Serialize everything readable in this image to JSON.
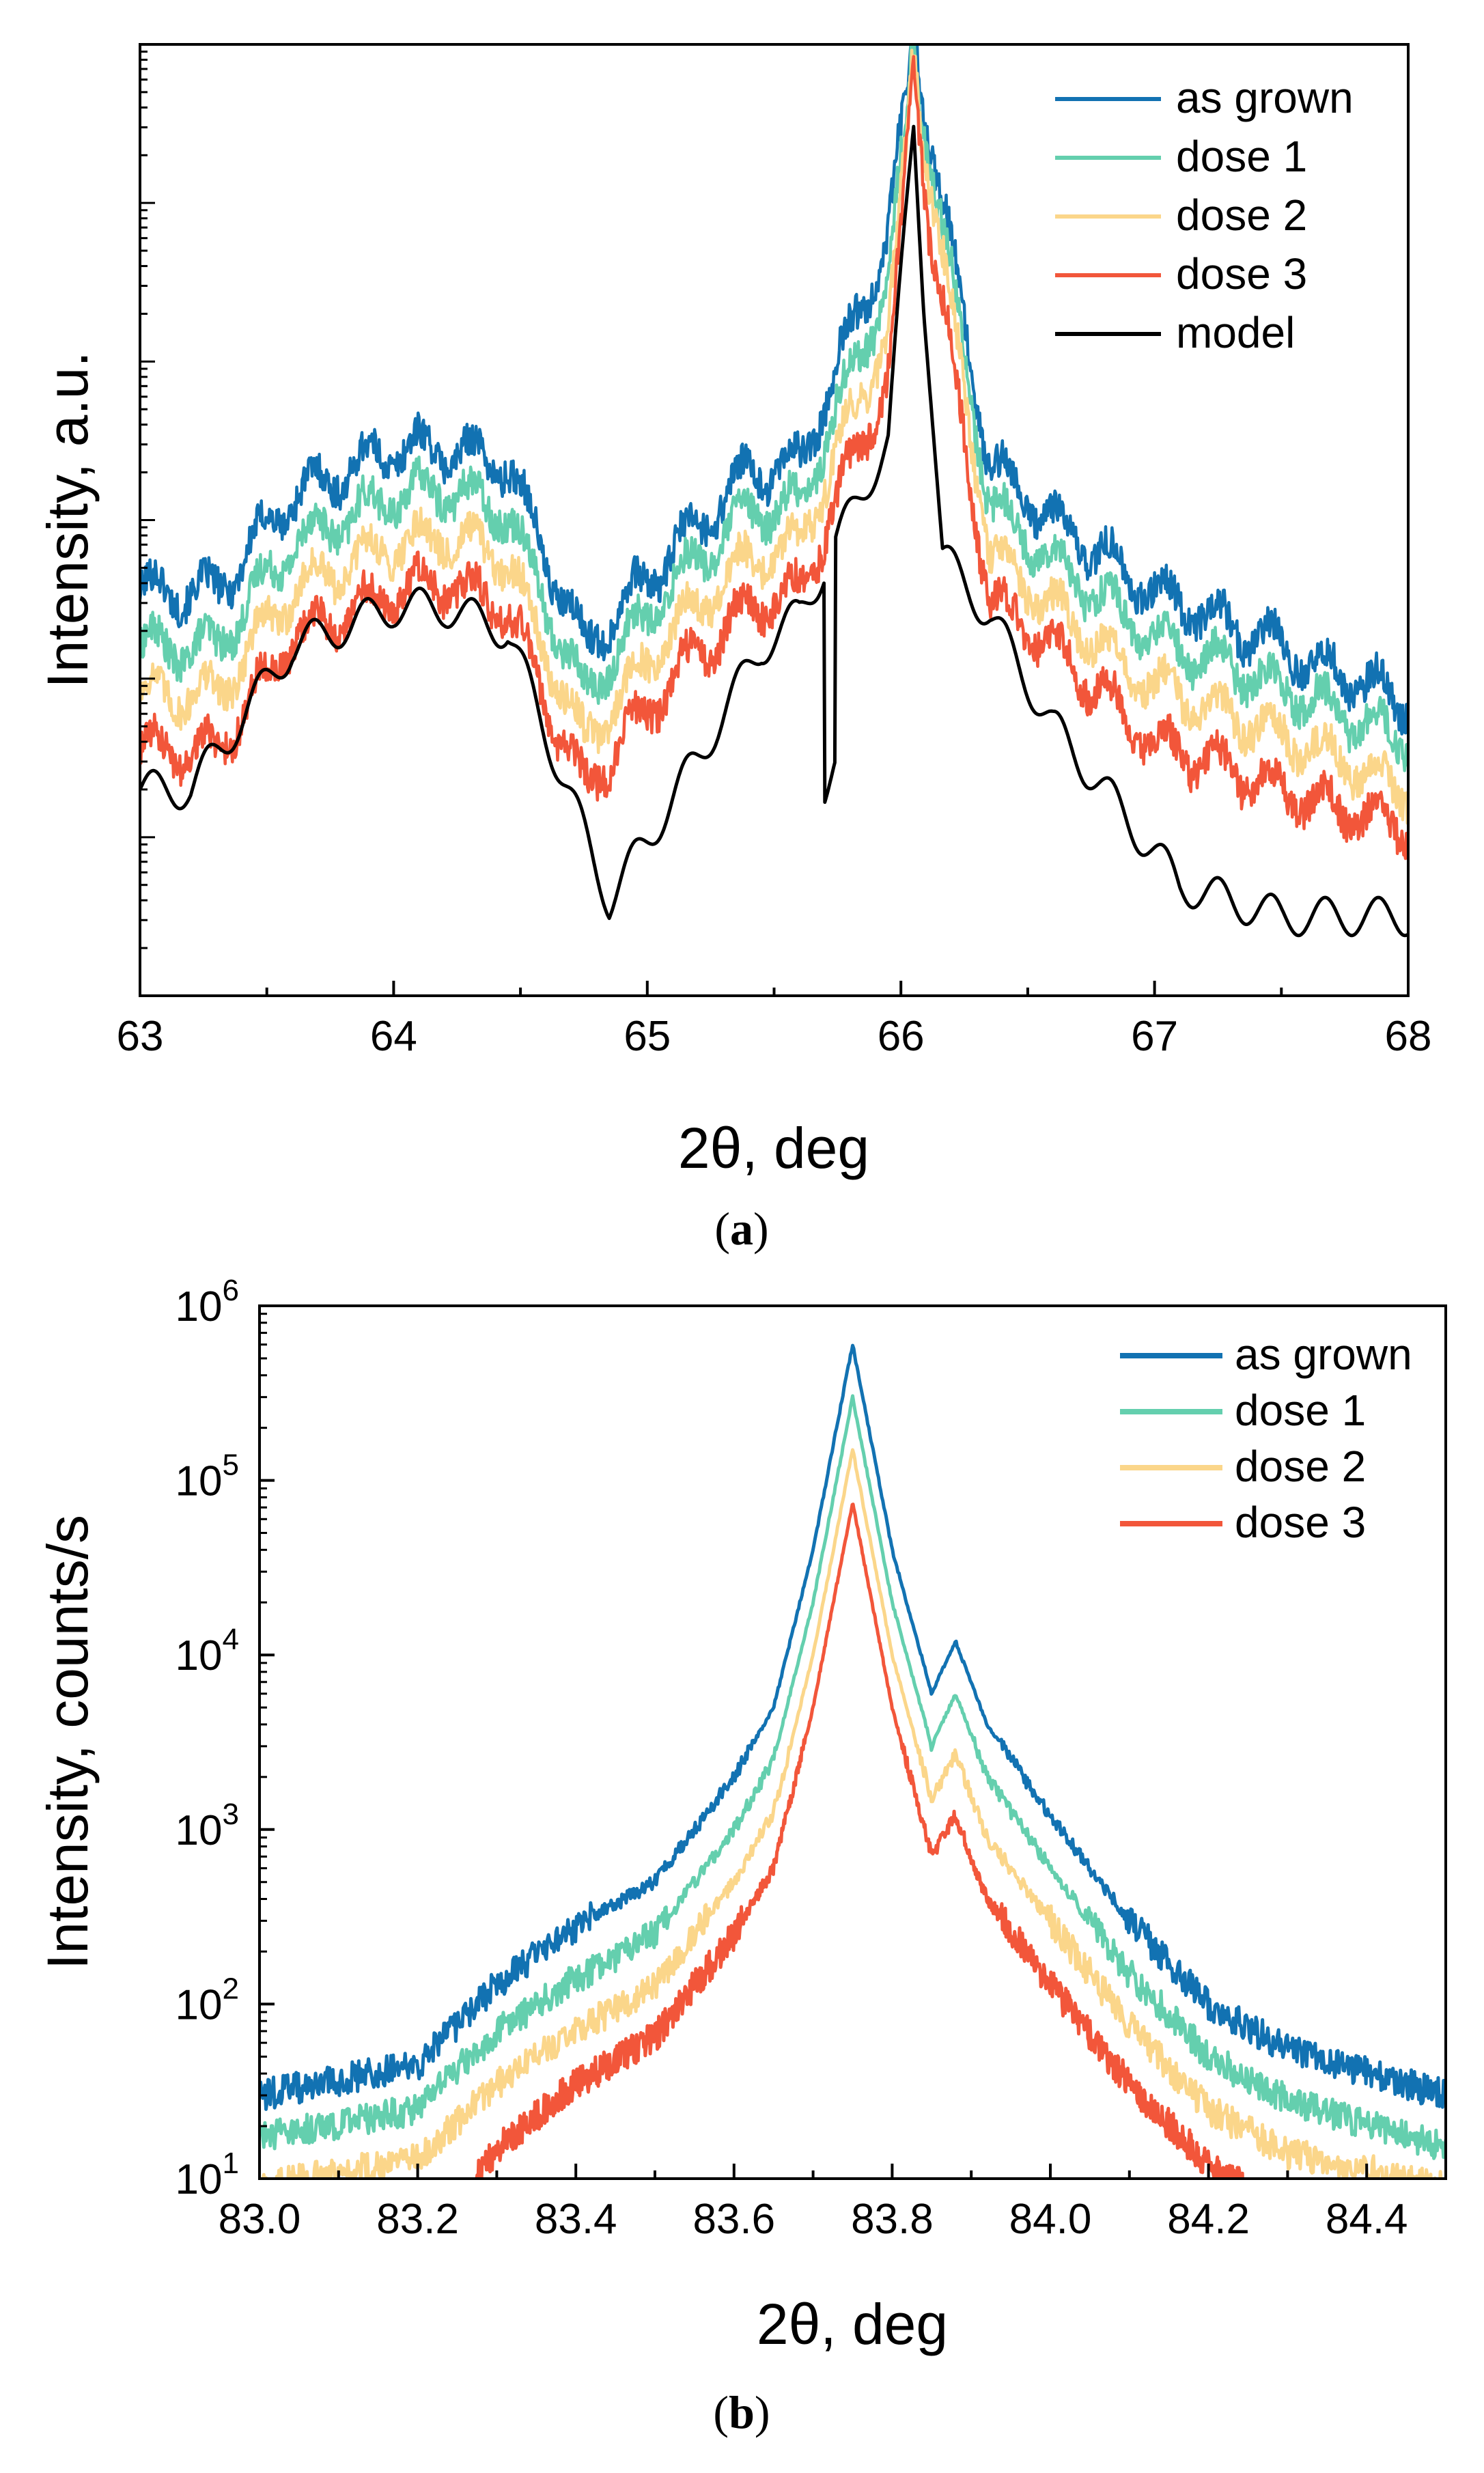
{
  "chart_data": [
    {
      "type": "line",
      "panel_label": "a",
      "xlabel": "2θ, deg",
      "ylabel": "Intensity, a.u.",
      "xlim": [
        63,
        68
      ],
      "xticks": [
        "63",
        "64",
        "65",
        "66",
        "67",
        "68"
      ],
      "yscale": "log",
      "ytick_labels_shown": false,
      "legend_position": "top-right",
      "series": [
        {
          "name": "as grown",
          "color": "#1272B2",
          "peaks": [
            [
              63.3,
              2.55
            ],
            [
              63.6,
              3.15
            ],
            [
              64.0,
              3.45
            ],
            [
              64.2,
              3.45
            ],
            [
              64.45,
              3.35
            ],
            [
              64.75,
              2.2
            ],
            [
              65.1,
              2.8
            ],
            [
              65.4,
              3.3
            ],
            [
              65.6,
              3.35
            ],
            [
              65.95,
              4.8
            ],
            [
              66.05,
              6.0
            ],
            [
              66.35,
              3.35
            ],
            [
              66.6,
              3.0
            ],
            [
              67.0,
              2.55
            ],
            [
              67.5,
              2.2
            ],
            [
              68.0,
              1.85
            ]
          ]
        },
        {
          "name": "dose 1",
          "color": "#64CFAE",
          "peaks": [
            [
              63.3,
              2.2
            ],
            [
              63.6,
              2.85
            ],
            [
              64.0,
              3.15
            ],
            [
              64.2,
              3.2
            ],
            [
              64.45,
              3.05
            ],
            [
              64.75,
              1.9
            ],
            [
              65.1,
              2.6
            ],
            [
              65.4,
              3.05
            ],
            [
              65.6,
              3.1
            ],
            [
              65.95,
              4.5
            ],
            [
              66.05,
              5.9
            ],
            [
              66.35,
              3.1
            ],
            [
              66.6,
              2.75
            ],
            [
              67.0,
              2.25
            ],
            [
              67.5,
              1.95
            ],
            [
              68.0,
              1.6
            ]
          ]
        },
        {
          "name": "dose 2",
          "color": "#FBD68A",
          "peaks": [
            [
              63.3,
              1.9
            ],
            [
              63.6,
              2.55
            ],
            [
              64.0,
              2.85
            ],
            [
              64.2,
              2.9
            ],
            [
              64.45,
              2.75
            ],
            [
              64.75,
              1.6
            ],
            [
              65.1,
              2.3
            ],
            [
              65.4,
              2.75
            ],
            [
              65.6,
              2.85
            ],
            [
              65.95,
              4.2
            ],
            [
              66.05,
              5.8
            ],
            [
              66.35,
              2.8
            ],
            [
              66.6,
              2.45
            ],
            [
              67.0,
              1.95
            ],
            [
              67.5,
              1.65
            ],
            [
              68.0,
              1.3
            ]
          ]
        },
        {
          "name": "dose 3",
          "color": "#F2563A",
          "peaks": [
            [
              63.3,
              1.55
            ],
            [
              63.6,
              2.25
            ],
            [
              64.0,
              2.55
            ],
            [
              64.2,
              2.6
            ],
            [
              64.45,
              2.45
            ],
            [
              64.75,
              1.3
            ],
            [
              65.1,
              2.0
            ],
            [
              65.4,
              2.45
            ],
            [
              65.6,
              2.55
            ],
            [
              65.95,
              3.9
            ],
            [
              66.05,
              5.5
            ],
            [
              66.35,
              2.5
            ],
            [
              66.6,
              2.2
            ],
            [
              67.0,
              1.6
            ],
            [
              67.5,
              1.3
            ],
            [
              68.0,
              1.05
            ]
          ]
        },
        {
          "name": "model",
          "color": "#000000",
          "peaks": [
            [
              63.2,
              1.3
            ],
            [
              63.6,
              2.2
            ],
            [
              64.0,
              2.45
            ],
            [
              64.2,
              2.45
            ],
            [
              64.45,
              2.3
            ],
            [
              64.85,
              0.6
            ],
            [
              65.2,
              1.5
            ],
            [
              65.45,
              2.2
            ],
            [
              65.6,
              2.4
            ],
            [
              65.95,
              3.5
            ],
            [
              66.05,
              5.5
            ],
            [
              66.15,
              2.8
            ],
            [
              66.35,
              2.4
            ],
            [
              66.6,
              1.7
            ],
            [
              67.1,
              0.7
            ],
            [
              67.5,
              0.5
            ]
          ]
        }
      ]
    },
    {
      "type": "line",
      "panel_label": "b",
      "xlabel": "2θ, deg",
      "ylabel": "Intensity, counts/s",
      "xlim": [
        83.0,
        84.5
      ],
      "xticks": [
        "83.0",
        "83.2",
        "83.4",
        "83.6",
        "83.8",
        "84.0",
        "84.2",
        "84.4"
      ],
      "yscale": "log",
      "ylim": [
        10,
        1000000
      ],
      "yticks": [
        {
          "base": "10",
          "exp": "1"
        },
        {
          "base": "10",
          "exp": "2"
        },
        {
          "base": "10",
          "exp": "3"
        },
        {
          "base": "10",
          "exp": "4"
        },
        {
          "base": "10",
          "exp": "5"
        },
        {
          "base": "10",
          "exp": "6"
        }
      ],
      "legend_position": "top-right",
      "series": [
        {
          "name": "as grown",
          "color": "#1272B2",
          "x": [
            83.0,
            83.2,
            83.3,
            83.4,
            83.5,
            83.6,
            83.65,
            83.7,
            83.75,
            83.8,
            83.85,
            83.88,
            83.92,
            84.0,
            84.1,
            84.2,
            84.3,
            84.5
          ],
          "y": [
            30,
            45,
            130,
            280,
            500,
            2000,
            5000,
            40000,
            600000,
            40000,
            6000,
            12000,
            4000,
            1200,
            300,
            100,
            55,
            30
          ]
        },
        {
          "name": "dose 1",
          "color": "#64CFAE",
          "x": [
            83.0,
            83.2,
            83.3,
            83.4,
            83.5,
            83.6,
            83.65,
            83.7,
            83.75,
            83.8,
            83.85,
            83.88,
            83.92,
            84.0,
            84.1,
            84.2,
            84.3,
            84.5
          ],
          "y": [
            17,
            25,
            70,
            140,
            250,
            1000,
            2500,
            20000,
            300000,
            20000,
            3000,
            6000,
            2000,
            600,
            150,
            50,
            28,
            15
          ]
        },
        {
          "name": "dose 2",
          "color": "#FBD68A",
          "x": [
            83.0,
            83.2,
            83.3,
            83.4,
            83.5,
            83.6,
            83.65,
            83.7,
            83.75,
            83.8,
            83.85,
            83.88,
            83.92,
            84.0,
            84.1,
            84.2,
            84.3,
            84.5
          ],
          "y": [
            9,
            13,
            35,
            70,
            125,
            500,
            1250,
            10000,
            150000,
            10000,
            1500,
            2700,
            900,
            300,
            75,
            25,
            14,
            9
          ]
        },
        {
          "name": "dose 3",
          "color": "#F2563A",
          "x": [
            83.26,
            83.3,
            83.4,
            83.5,
            83.6,
            83.65,
            83.7,
            83.75,
            83.8,
            83.85,
            83.88,
            83.92,
            84.0,
            84.1,
            84.2,
            84.25
          ],
          "y": [
            8,
            15,
            35,
            65,
            250,
            600,
            5000,
            75000,
            5000,
            700,
            1200,
            400,
            130,
            35,
            12,
            9
          ]
        }
      ]
    }
  ]
}
